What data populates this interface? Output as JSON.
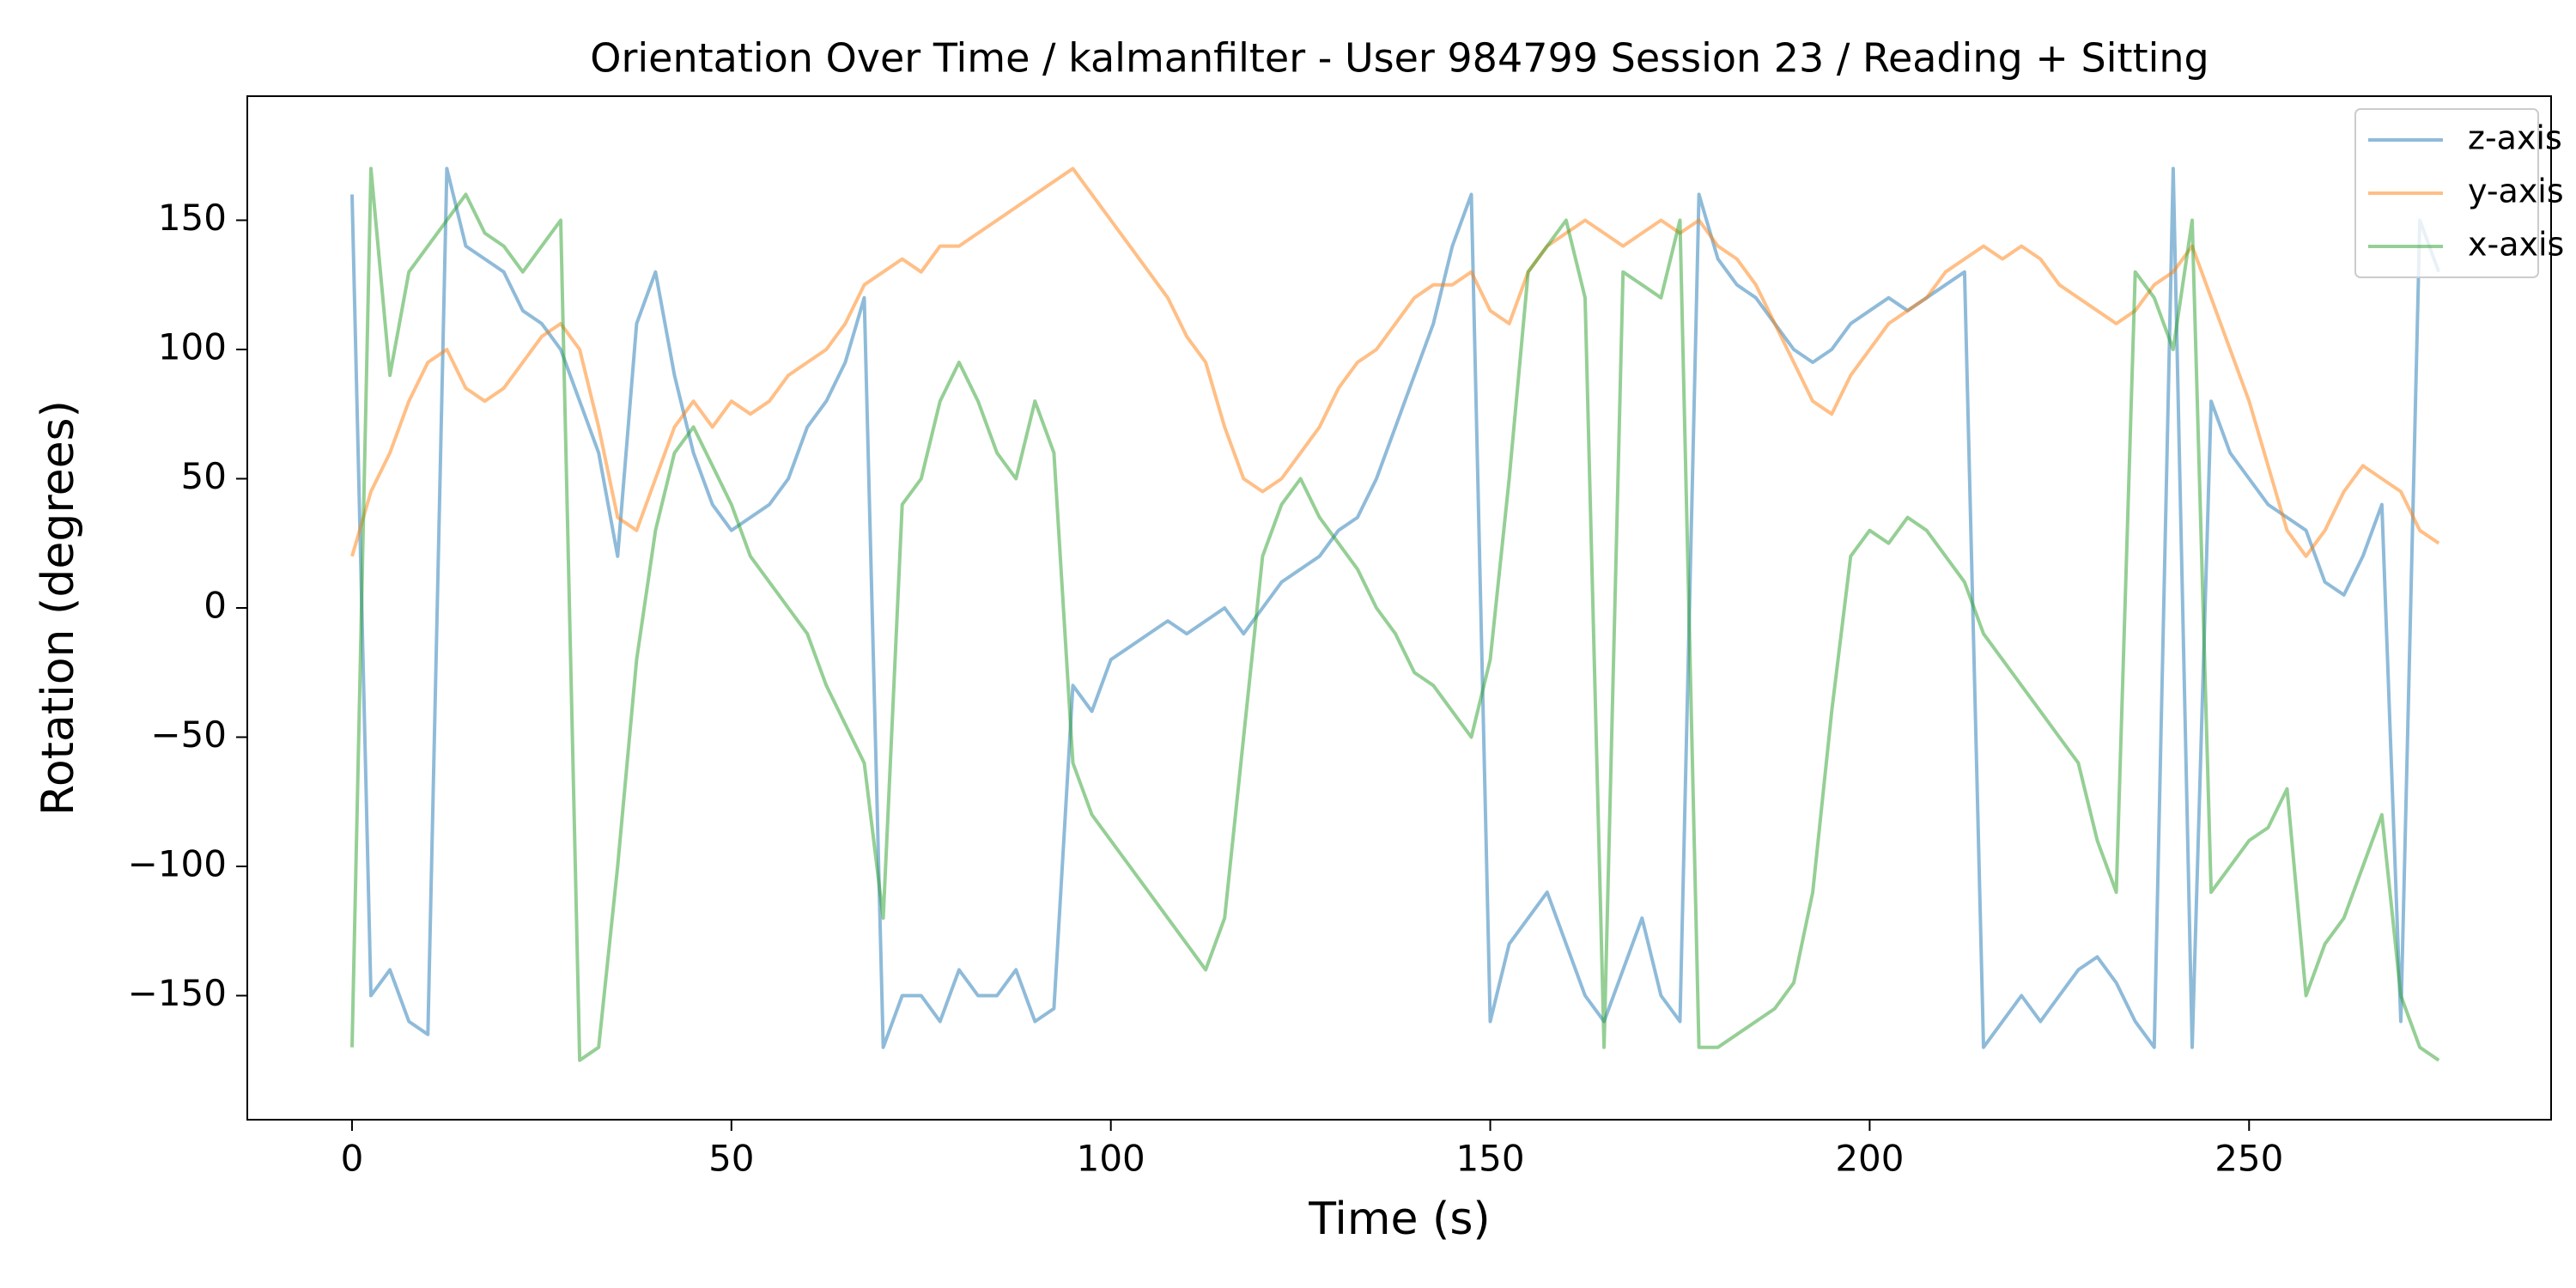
{
  "chart_data": {
    "type": "line",
    "title": "Orientation Over Time / kalmanfilter - User 984799 Session 23 / Reading + Sitting",
    "xlabel": "Time (s)",
    "ylabel": "Rotation (degrees)",
    "x": [
      0,
      2.5,
      5,
      7.5,
      10,
      12.5,
      15,
      17.5,
      20,
      22.5,
      25,
      27.5,
      30,
      32.5,
      35,
      37.5,
      40,
      42.5,
      45,
      47.5,
      50,
      52.5,
      55,
      57.5,
      60,
      62.5,
      65,
      67.5,
      70,
      72.5,
      75,
      77.5,
      80,
      82.5,
      85,
      87.5,
      90,
      92.5,
      95,
      97.5,
      100,
      102.5,
      105,
      107.5,
      110,
      112.5,
      115,
      117.5,
      120,
      122.5,
      125,
      127.5,
      130,
      132.5,
      135,
      137.5,
      140,
      142.5,
      145,
      147.5,
      150,
      152.5,
      155,
      157.5,
      160,
      162.5,
      165,
      167.5,
      170,
      172.5,
      175,
      177.5,
      180,
      182.5,
      185,
      187.5,
      190,
      192.5,
      195,
      197.5,
      200,
      202.5,
      205,
      207.5,
      210,
      212.5,
      215,
      217.5,
      220,
      222.5,
      225,
      227.5,
      230,
      232.5,
      235,
      237.5,
      240,
      242.5,
      245,
      247.5,
      250,
      252.5,
      255,
      257.5,
      260,
      262.5,
      265,
      267.5,
      270,
      272.5,
      275
    ],
    "series": [
      {
        "name": "z-axis",
        "color": "#1f77b4",
        "values": [
          160,
          -150,
          -140,
          -160,
          -165,
          170,
          140,
          135,
          130,
          115,
          110,
          100,
          80,
          60,
          20,
          110,
          130,
          90,
          60,
          40,
          30,
          35,
          40,
          50,
          70,
          80,
          95,
          120,
          -170,
          -150,
          -150,
          -160,
          -140,
          -150,
          -150,
          -140,
          -160,
          -155,
          -30,
          -40,
          -20,
          -15,
          -10,
          -5,
          -10,
          -5,
          0,
          -10,
          0,
          10,
          15,
          20,
          30,
          35,
          50,
          70,
          90,
          110,
          140,
          160,
          -160,
          -130,
          -120,
          -110,
          -130,
          -150,
          -160,
          -140,
          -120,
          -150,
          -160,
          160,
          135,
          125,
          120,
          110,
          100,
          95,
          100,
          110,
          115,
          120,
          115,
          120,
          125,
          130,
          -170,
          -160,
          -150,
          -160,
          -150,
          -140,
          -135,
          -145,
          -160,
          -170,
          170,
          -170,
          80,
          60,
          50,
          40,
          35,
          30,
          10,
          5,
          20,
          40,
          -160,
          150,
          130
        ]
      },
      {
        "name": "y-axis",
        "color": "#ff7f0e",
        "values": [
          20,
          45,
          60,
          80,
          95,
          100,
          85,
          80,
          85,
          95,
          105,
          110,
          100,
          70,
          35,
          30,
          50,
          70,
          80,
          70,
          80,
          75,
          80,
          90,
          95,
          100,
          110,
          125,
          130,
          135,
          130,
          140,
          140,
          145,
          150,
          155,
          160,
          165,
          170,
          160,
          150,
          140,
          130,
          120,
          105,
          95,
          70,
          50,
          45,
          50,
          60,
          70,
          85,
          95,
          100,
          110,
          120,
          125,
          125,
          130,
          115,
          110,
          130,
          140,
          145,
          150,
          145,
          140,
          145,
          150,
          145,
          150,
          140,
          135,
          125,
          110,
          95,
          80,
          75,
          90,
          100,
          110,
          115,
          120,
          130,
          135,
          140,
          135,
          140,
          135,
          125,
          120,
          115,
          110,
          115,
          125,
          130,
          140,
          120,
          100,
          80,
          55,
          30,
          20,
          30,
          45,
          55,
          50,
          45,
          30,
          25
        ]
      },
      {
        "name": "x-axis",
        "color": "#2ca02c",
        "values": [
          -170,
          170,
          90,
          130,
          140,
          150,
          160,
          145,
          140,
          130,
          140,
          150,
          -175,
          -170,
          -100,
          -20,
          30,
          60,
          70,
          55,
          40,
          20,
          10,
          0,
          -10,
          -30,
          -45,
          -60,
          -120,
          40,
          50,
          80,
          95,
          80,
          60,
          50,
          80,
          60,
          -60,
          -80,
          -90,
          -100,
          -110,
          -120,
          -130,
          -140,
          -120,
          -50,
          20,
          40,
          50,
          35,
          25,
          15,
          0,
          -10,
          -25,
          -30,
          -40,
          -50,
          -20,
          50,
          130,
          140,
          150,
          120,
          -170,
          130,
          125,
          120,
          150,
          -170,
          -170,
          -165,
          -160,
          -155,
          -145,
          -110,
          -40,
          20,
          30,
          25,
          35,
          30,
          20,
          10,
          -10,
          -20,
          -30,
          -40,
          -50,
          -60,
          -90,
          -110,
          130,
          120,
          100,
          150,
          -110,
          -100,
          -90,
          -85,
          -70,
          -150,
          -130,
          -120,
          -100,
          -80,
          -150,
          -170,
          -175
        ]
      }
    ],
    "alpha": 0.5,
    "xlim": [
      -13.8,
      289.8
    ],
    "ylim": [
      -198,
      198
    ],
    "xticks": [
      0,
      50,
      100,
      150,
      200,
      250
    ],
    "yticks": [
      {
        "value": -150,
        "label": "−150"
      },
      {
        "value": -100,
        "label": "−100"
      },
      {
        "value": -50,
        "label": "−50"
      },
      0,
      50,
      100,
      150
    ],
    "legend": "upper right",
    "grid": false
  }
}
